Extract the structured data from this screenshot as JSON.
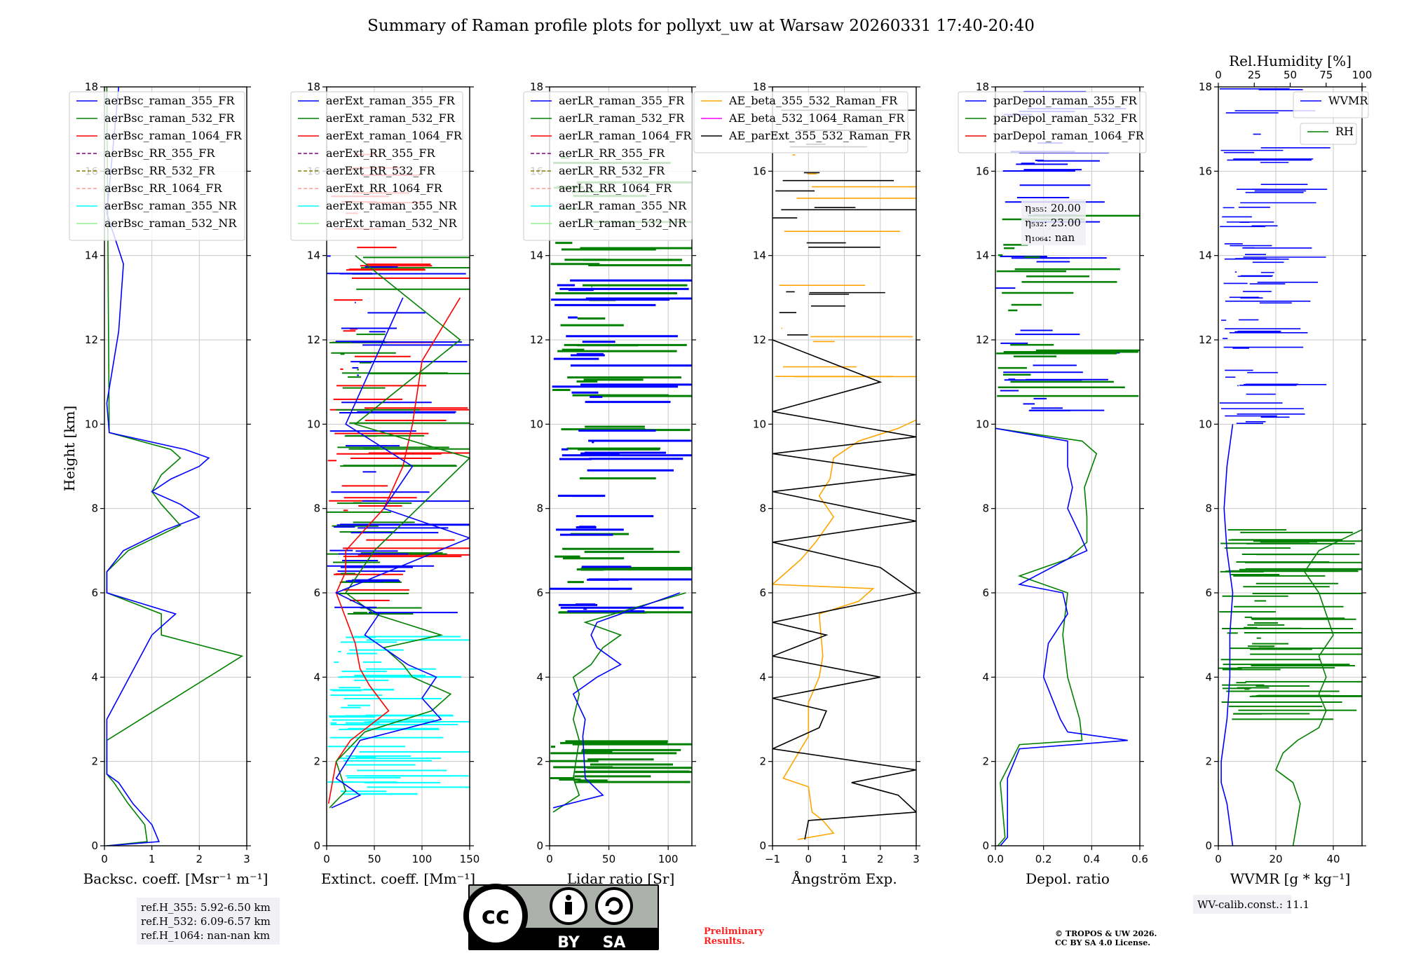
{
  "title": "Summary of Raman profile plots for pollyxt_uw at Warsaw 20260331 17:40-20:40",
  "colors": {
    "c355": "#0000ff",
    "c532": "#008000",
    "c1064": "#ff0000",
    "rr355": "#800080",
    "rr532": "#808000",
    "rr1064": "#ff9999",
    "nr355": "#00ffff",
    "nr532": "#90ee90",
    "orange": "#ffa500",
    "magenta": "#ff00ff",
    "black": "#000000"
  },
  "ylabel": "Height [km]",
  "height_ticks": [
    "0",
    "2",
    "4",
    "6",
    "8",
    "10",
    "12",
    "14",
    "16",
    "18"
  ],
  "panels": [
    {
      "id": "bsc",
      "xlabel": "Backsc. coeff. [Msr⁻¹ m⁻¹]",
      "xlim": [
        0,
        3
      ],
      "xticks": [
        "0",
        "1",
        "2",
        "3"
      ],
      "legend": [
        "aerBsc_raman_355_FR",
        "aerBsc_raman_532_FR",
        "aerBsc_raman_1064_FR",
        "aerBsc_RR_355_FR",
        "aerBsc_RR_532_FR",
        "aerBsc_RR_1064_FR",
        "aerBsc_raman_355_NR",
        "aerBsc_raman_532_NR"
      ]
    },
    {
      "id": "ext",
      "xlabel": "Extinct. coeff. [Mm⁻¹]",
      "xlim": [
        0,
        150
      ],
      "xticks": [
        "0",
        "50",
        "100",
        "150"
      ],
      "legend": [
        "aerExt_raman_355_FR",
        "aerExt_raman_532_FR",
        "aerExt_raman_1064_FR",
        "aerExt_RR_355_FR",
        "aerExt_RR_532_FR",
        "aerExt_RR_1064_FR",
        "aerExt_raman_355_NR",
        "aerExt_raman_532_NR"
      ]
    },
    {
      "id": "lr",
      "xlabel": "Lidar ratio [Sr]",
      "xlim": [
        0,
        120
      ],
      "xticks": [
        "0",
        "50",
        "100"
      ],
      "legend": [
        "aerLR_raman_355_FR",
        "aerLR_raman_532_FR",
        "aerLR_raman_1064_FR",
        "aerLR_RR_355_FR",
        "aerLR_RR_532_FR",
        "aerLR_RR_1064_FR",
        "aerLR_raman_355_NR",
        "aerLR_raman_532_NR"
      ]
    },
    {
      "id": "ae",
      "xlabel": "Ångström Exp.",
      "xlim": [
        -1,
        3
      ],
      "xticks": [
        "−1",
        "0",
        "1",
        "2",
        "3"
      ],
      "legend": [
        "AE_beta_355_532_Raman_FR",
        "AE_beta_532_1064_Raman_FR",
        "AE_parExt_355_532_Raman_FR"
      ]
    },
    {
      "id": "dep",
      "xlabel": "Depol. ratio",
      "xlim": [
        0,
        0.6
      ],
      "xticks": [
        "0.0",
        "0.2",
        "0.4",
        "0.6"
      ],
      "legend": [
        "parDepol_raman_355_FR",
        "parDepol_raman_532_FR",
        "parDepol_raman_1064_FR"
      ],
      "eta": [
        "20.00",
        "23.00",
        "nan"
      ]
    },
    {
      "id": "wv",
      "xlabel": "WVMR [g * kg⁻¹]",
      "xlim": [
        0,
        50
      ],
      "xticks": [
        "0",
        "20",
        "40"
      ],
      "legend": [
        "WVMR"
      ],
      "legend2": [
        "RH"
      ],
      "top_label": "Rel.Humidity [%]",
      "top_xticks": [
        "0",
        "25",
        "50",
        "75",
        "100"
      ]
    }
  ],
  "ref_heights": [
    "ref.H_355: 5.92-6.50 km",
    "ref.H_532: 6.09-6.57 km",
    "ref.H_1064: nan-nan km"
  ],
  "wv_calib": "WV-calib.const.: 11.1",
  "license_badge": {
    "cc": "cc",
    "by": "BY",
    "sa": "SA"
  },
  "preliminary": [
    "Preliminary",
    "Results."
  ],
  "copyright": [
    "© TROPOS & UW 2026.",
    "CC BY SA 4.0 License."
  ],
  "chart_data": {
    "type": "line",
    "ylim_km": [
      0,
      18
    ],
    "bsc_355": [
      [
        0,
        0.05
      ],
      [
        0.1,
        1.15
      ],
      [
        0.5,
        1.0
      ],
      [
        1.0,
        0.6
      ],
      [
        1.5,
        0.3
      ],
      [
        1.7,
        0.05
      ],
      [
        2.5,
        0.05
      ],
      [
        3.0,
        0.05
      ],
      [
        5.0,
        1.0
      ],
      [
        5.5,
        1.5
      ],
      [
        6.0,
        0.05
      ],
      [
        6.5,
        0.05
      ],
      [
        7.0,
        0.4
      ],
      [
        7.5,
        1.3
      ],
      [
        7.8,
        2.0
      ],
      [
        8.1,
        1.6
      ],
      [
        8.4,
        1.0
      ],
      [
        8.7,
        1.4
      ],
      [
        9.0,
        2.0
      ],
      [
        9.2,
        2.2
      ],
      [
        9.4,
        1.7
      ],
      [
        9.8,
        0.1
      ],
      [
        10.5,
        0.05
      ],
      [
        12.2,
        0.3
      ],
      [
        13.8,
        0.4
      ],
      [
        15.0,
        0.05
      ],
      [
        18.0,
        0.3
      ]
    ],
    "bsc_532": [
      [
        0,
        0.05
      ],
      [
        0.1,
        0.9
      ],
      [
        0.5,
        0.85
      ],
      [
        1.0,
        0.5
      ],
      [
        1.5,
        0.2
      ],
      [
        1.7,
        0.05
      ],
      [
        2.5,
        0.05
      ],
      [
        4.5,
        2.9
      ],
      [
        5.0,
        1.2
      ],
      [
        5.5,
        1.2
      ],
      [
        6.0,
        0.05
      ],
      [
        6.5,
        0.05
      ],
      [
        7.0,
        0.5
      ],
      [
        7.6,
        1.6
      ],
      [
        8.1,
        1.2
      ],
      [
        8.4,
        1.0
      ],
      [
        8.8,
        1.2
      ],
      [
        9.2,
        1.6
      ],
      [
        9.4,
        1.4
      ],
      [
        9.8,
        0.1
      ],
      [
        18.0,
        0.05
      ]
    ],
    "ext_355": [
      [
        0.9,
        5
      ],
      [
        1.2,
        35
      ],
      [
        1.6,
        10
      ],
      [
        2.5,
        35
      ],
      [
        3.0,
        120
      ],
      [
        3.5,
        100
      ],
      [
        4.0,
        115
      ],
      [
        4.3,
        85
      ],
      [
        5.0,
        40
      ],
      [
        5.5,
        55
      ],
      [
        6.0,
        10
      ],
      [
        7.3,
        150
      ],
      [
        8.0,
        60
      ],
      [
        9.0,
        90
      ],
      [
        10.0,
        20
      ],
      [
        12.0,
        60
      ],
      [
        13.0,
        80
      ]
    ],
    "ext_532": [
      [
        0.9,
        3
      ],
      [
        1.3,
        20
      ],
      [
        2.0,
        10
      ],
      [
        2.7,
        40
      ],
      [
        3.2,
        110
      ],
      [
        3.6,
        130
      ],
      [
        4.0,
        90
      ],
      [
        4.3,
        80
      ],
      [
        4.7,
        60
      ],
      [
        5.0,
        120
      ],
      [
        5.5,
        50
      ],
      [
        6.0,
        20
      ],
      [
        7.0,
        50
      ],
      [
        9.2,
        150
      ],
      [
        10.0,
        30
      ],
      [
        12.0,
        140
      ],
      [
        14.0,
        30
      ]
    ],
    "ext_1064": [
      [
        1.0,
        2
      ],
      [
        2.0,
        10
      ],
      [
        2.5,
        25
      ],
      [
        3.2,
        65
      ],
      [
        3.8,
        45
      ],
      [
        4.2,
        35
      ],
      [
        4.8,
        30
      ],
      [
        5.4,
        20
      ],
      [
        6.0,
        10
      ],
      [
        6.5,
        20
      ],
      [
        7.0,
        20
      ],
      [
        8.0,
        60
      ],
      [
        9.0,
        80
      ],
      [
        10.0,
        90
      ],
      [
        11.5,
        100
      ],
      [
        13.0,
        140
      ]
    ],
    "lr_355": [
      [
        0.9,
        3
      ],
      [
        1.2,
        45
      ],
      [
        1.6,
        30
      ],
      [
        2.6,
        28
      ],
      [
        3.0,
        30
      ],
      [
        3.6,
        20
      ],
      [
        4.0,
        40
      ],
      [
        4.3,
        60
      ],
      [
        4.7,
        40
      ],
      [
        5.0,
        35
      ],
      [
        5.3,
        40
      ],
      [
        6.0,
        110
      ]
    ],
    "lr_532": [
      [
        0.8,
        3
      ],
      [
        1.2,
        25
      ],
      [
        1.6,
        20
      ],
      [
        2.5,
        25
      ],
      [
        3.0,
        20
      ],
      [
        3.6,
        25
      ],
      [
        4.0,
        20
      ],
      [
        4.3,
        35
      ],
      [
        4.7,
        45
      ],
      [
        5.0,
        60
      ],
      [
        5.3,
        30
      ],
      [
        6.0,
        115
      ]
    ],
    "ae_beta_355_532": [
      [
        0.15,
        -0.3
      ],
      [
        0.3,
        0.7
      ],
      [
        0.6,
        0.4
      ],
      [
        0.8,
        0.1
      ],
      [
        1.4,
        0.0
      ],
      [
        1.6,
        -0.7
      ],
      [
        2.6,
        0.0
      ],
      [
        2.8,
        0.0
      ],
      [
        3.4,
        0.0
      ],
      [
        4.0,
        0.3
      ],
      [
        4.5,
        0.4
      ],
      [
        5.5,
        0.3
      ],
      [
        5.8,
        1.4
      ],
      [
        6.1,
        1.8
      ],
      [
        6.2,
        -1.0
      ],
      [
        6.8,
        -0.2
      ],
      [
        7.2,
        0.2
      ],
      [
        7.8,
        0.7
      ],
      [
        8.3,
        0.3
      ],
      [
        8.7,
        0.6
      ],
      [
        9.2,
        0.7
      ],
      [
        9.6,
        1.4
      ],
      [
        9.9,
        2.5
      ],
      [
        10.1,
        3.0
      ]
    ],
    "ae_parExt_355_532": [
      [
        0.15,
        -0.1
      ],
      [
        0.6,
        0.0
      ],
      [
        0.8,
        3.0
      ],
      [
        1.2,
        2.5
      ],
      [
        1.5,
        1.2
      ],
      [
        1.8,
        3.0
      ],
      [
        2.3,
        -1.0
      ],
      [
        2.8,
        0.3
      ],
      [
        3.2,
        0.5
      ],
      [
        3.5,
        -1.0
      ],
      [
        4.0,
        2.0
      ],
      [
        4.5,
        -1.0
      ],
      [
        5.0,
        0.5
      ],
      [
        5.3,
        -1.0
      ],
      [
        6.0,
        3.0
      ],
      [
        6.6,
        2.0
      ],
      [
        7.2,
        -1.0
      ],
      [
        7.7,
        3.0
      ],
      [
        8.4,
        -1.0
      ],
      [
        8.8,
        3.0
      ],
      [
        9.3,
        -1.0
      ],
      [
        9.7,
        3.0
      ],
      [
        10.3,
        -1.0
      ],
      [
        11.0,
        2.0
      ],
      [
        12.0,
        -1.0
      ]
    ],
    "dep_355": [
      [
        0,
        0.02
      ],
      [
        0.2,
        0.05
      ],
      [
        1.6,
        0.05
      ],
      [
        2.3,
        0.1
      ],
      [
        2.5,
        0.55
      ],
      [
        2.7,
        0.3
      ],
      [
        3.0,
        0.27
      ],
      [
        4.0,
        0.2
      ],
      [
        4.8,
        0.22
      ],
      [
        5.5,
        0.3
      ],
      [
        6.0,
        0.28
      ],
      [
        6.2,
        0.1
      ],
      [
        6.8,
        0.3
      ],
      [
        7.0,
        0.38
      ],
      [
        7.4,
        0.35
      ],
      [
        8.0,
        0.3
      ],
      [
        8.5,
        0.32
      ],
      [
        9.0,
        0.3
      ],
      [
        9.6,
        0.3
      ],
      [
        9.9,
        0.0
      ]
    ],
    "dep_532": [
      [
        0,
        0.01
      ],
      [
        0.2,
        0.04
      ],
      [
        1.5,
        0.02
      ],
      [
        2.4,
        0.1
      ],
      [
        2.5,
        0.36
      ],
      [
        3.0,
        0.35
      ],
      [
        4.0,
        0.3
      ],
      [
        5.0,
        0.28
      ],
      [
        6.0,
        0.3
      ],
      [
        6.4,
        0.1
      ],
      [
        6.8,
        0.3
      ],
      [
        7.2,
        0.38
      ],
      [
        7.8,
        0.38
      ],
      [
        8.5,
        0.37
      ],
      [
        9.3,
        0.42
      ],
      [
        9.6,
        0.36
      ],
      [
        9.9,
        0.0
      ]
    ],
    "wvmr": [
      [
        0,
        5
      ],
      [
        0.5,
        4
      ],
      [
        1.0,
        3
      ],
      [
        1.5,
        1
      ],
      [
        2.0,
        1
      ],
      [
        2.5,
        2
      ],
      [
        3.0,
        3
      ],
      [
        4.0,
        4
      ],
      [
        5.0,
        4
      ],
      [
        6.0,
        5
      ],
      [
        7.0,
        3
      ],
      [
        8.0,
        2
      ],
      [
        9.0,
        3
      ],
      [
        10.0,
        5
      ]
    ],
    "rh_percent": [
      [
        0,
        52
      ],
      [
        1.0,
        57
      ],
      [
        1.5,
        52
      ],
      [
        1.8,
        40
      ],
      [
        2.2,
        45
      ],
      [
        2.5,
        55
      ],
      [
        2.8,
        70
      ],
      [
        3.2,
        75
      ],
      [
        3.6,
        70
      ],
      [
        4.0,
        75
      ],
      [
        4.5,
        70
      ],
      [
        5.0,
        80
      ],
      [
        5.5,
        75
      ],
      [
        6.0,
        70
      ],
      [
        6.5,
        60
      ],
      [
        7.0,
        70
      ],
      [
        7.5,
        100
      ],
      [
        8.0,
        100
      ]
    ],
    "wvmr_top_km_range": [
      10,
      18
    ],
    "rh_range_percent": [
      0,
      100
    ]
  }
}
